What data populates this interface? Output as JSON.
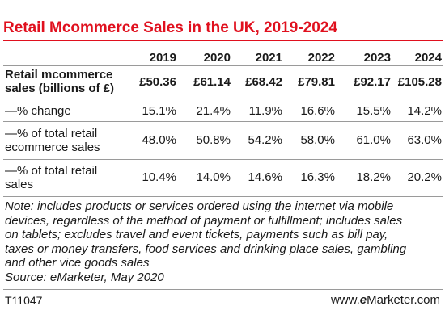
{
  "title": "Retail Mcommerce Sales in the UK, 2019-2024",
  "table": {
    "years": [
      "2019",
      "2020",
      "2021",
      "2022",
      "2023",
      "2024"
    ],
    "rows": [
      {
        "label_lines": [
          "Retail mcommerce",
          "sales (billions of £)"
        ],
        "values": [
          "£50.36",
          "£61.14",
          "£68.42",
          "£79.81",
          "£92.17",
          "£105.28"
        ]
      },
      {
        "label_lines": [
          "—% change"
        ],
        "values": [
          "15.1%",
          "21.4%",
          "11.9%",
          "16.6%",
          "15.5%",
          "14.2%"
        ]
      },
      {
        "label_lines": [
          "—% of total retail",
          "ecommerce sales"
        ],
        "values": [
          "48.0%",
          "50.8%",
          "54.2%",
          "58.0%",
          "61.0%",
          "63.0%"
        ]
      },
      {
        "label_lines": [
          "—% of total retail",
          "sales"
        ],
        "values": [
          "10.4%",
          "14.0%",
          "14.6%",
          "16.3%",
          "18.2%",
          "20.2%"
        ]
      }
    ]
  },
  "note_lines": [
    "Note: includes products or services ordered using the internet via mobile",
    "devices, regardless of the method of payment or fulfillment; includes sales",
    "on tablets; excludes travel and event tickets, payments such as bill pay,",
    "taxes or money transfers, food services and drinking place sales, gambling",
    "and other vice goods sales"
  ],
  "source": "Source: eMarketer, May 2020",
  "footer": {
    "code": "T11047",
    "brand_prefix": "www.",
    "brand_e": "e",
    "brand_rest": "Marketer",
    "brand_suffix": ".com"
  }
}
